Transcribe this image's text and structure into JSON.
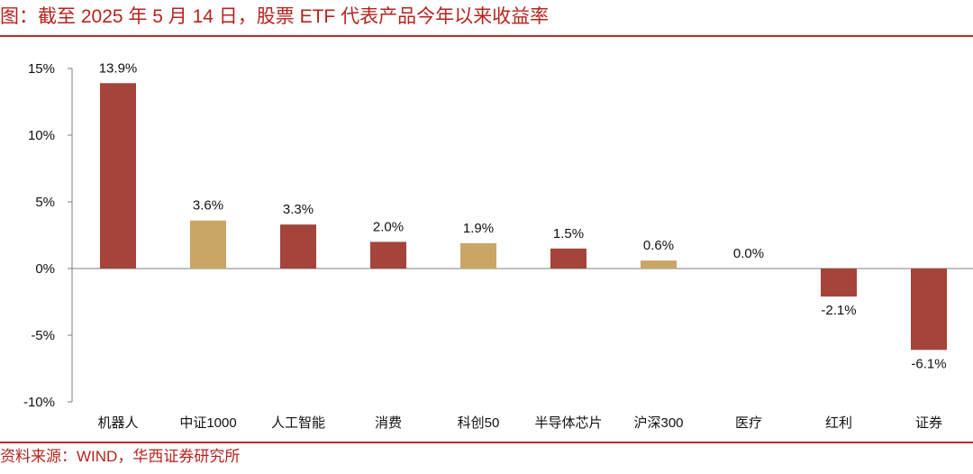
{
  "header": {
    "title": "图：截至 2025 年 5 月 14 日，股票 ETF 代表产品今年以来收益率"
  },
  "footer": {
    "source": "资料来源：WIND，华西证券研究所"
  },
  "colors": {
    "accent": "#c0282a",
    "bar_red": "#a4443b",
    "bar_gold": "#c9a566"
  },
  "chart_data": {
    "type": "bar",
    "title": "",
    "xlabel": "",
    "ylabel": "",
    "ylim": [
      -10,
      15
    ],
    "y_ticks": [
      15,
      10,
      5,
      0,
      -5,
      -10
    ],
    "y_tick_labels": [
      "15%",
      "10%",
      "5%",
      "0%",
      "-5%",
      "-10%"
    ],
    "grid": false,
    "legend": "none",
    "categories": [
      "机器人",
      "中证1000",
      "人工智能",
      "消费",
      "科创50",
      "半导体芯片",
      "沪深300",
      "医疗",
      "红利",
      "证券"
    ],
    "values": [
      13.9,
      3.6,
      3.3,
      2.0,
      1.9,
      1.5,
      0.6,
      0.0,
      -2.1,
      -6.1
    ],
    "data_labels": [
      "13.9%",
      "3.6%",
      "3.3%",
      "2.0%",
      "1.9%",
      "1.5%",
      "0.6%",
      "0.0%",
      "-2.1%",
      "-6.1%"
    ],
    "bar_colors": [
      "#a4443b",
      "#c9a566",
      "#a4443b",
      "#a4443b",
      "#c9a566",
      "#a4443b",
      "#c9a566",
      "#a4443b",
      "#a4443b",
      "#a4443b"
    ]
  }
}
